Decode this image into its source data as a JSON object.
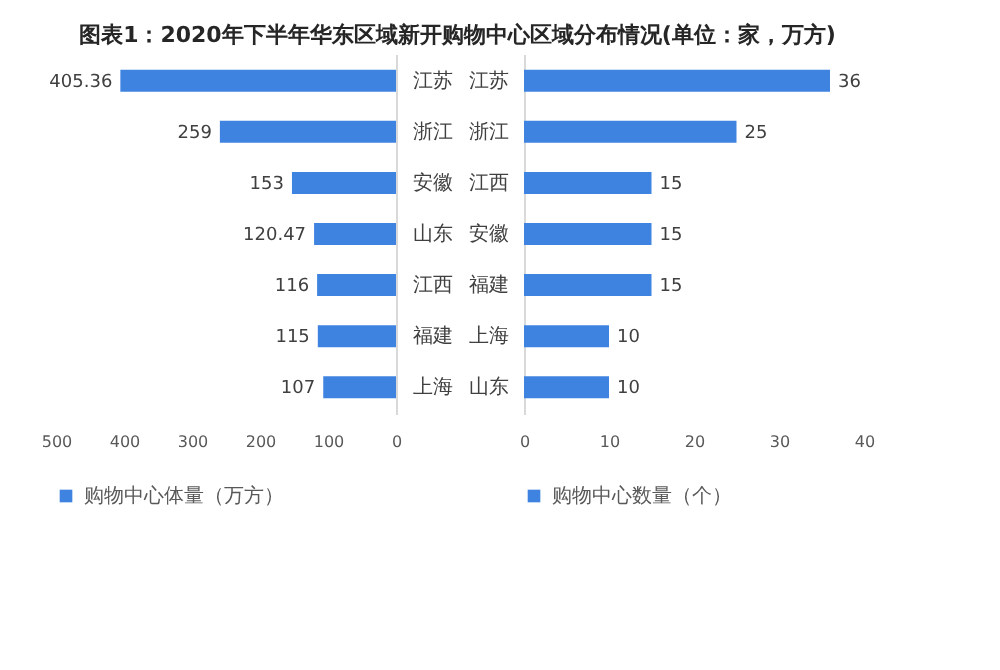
{
  "chart_data": [
    {
      "type": "bar",
      "orientation": "horizontal",
      "title": "图表1：2020年下半年华东区域新开购物中心区域分布情况(单位：家，万方)",
      "categories": [
        "江苏",
        "浙江",
        "安徽",
        "山东",
        "江西",
        "福建",
        "上海"
      ],
      "series": [
        {
          "name": "购物中心体量（万方）",
          "color": "#3f83e0",
          "values": [
            405.36,
            259,
            153,
            120.47,
            116,
            115,
            107
          ]
        }
      ],
      "xlim": [
        500,
        0
      ],
      "xticks": [
        500,
        400,
        300,
        200,
        100,
        0
      ],
      "data_labels": true,
      "grid": false,
      "legend": "bottom"
    },
    {
      "type": "bar",
      "orientation": "horizontal",
      "categories": [
        "江苏",
        "浙江",
        "江西",
        "安徽",
        "福建",
        "上海",
        "山东"
      ],
      "series": [
        {
          "name": "购物中心数量（个）",
          "color": "#3f83e0",
          "values": [
            36,
            25,
            15,
            15,
            15,
            10,
            10
          ]
        }
      ],
      "xlim": [
        0,
        40
      ],
      "xticks": [
        0,
        10,
        20,
        30,
        40
      ],
      "data_labels": true,
      "grid": false,
      "legend": "bottom"
    }
  ]
}
